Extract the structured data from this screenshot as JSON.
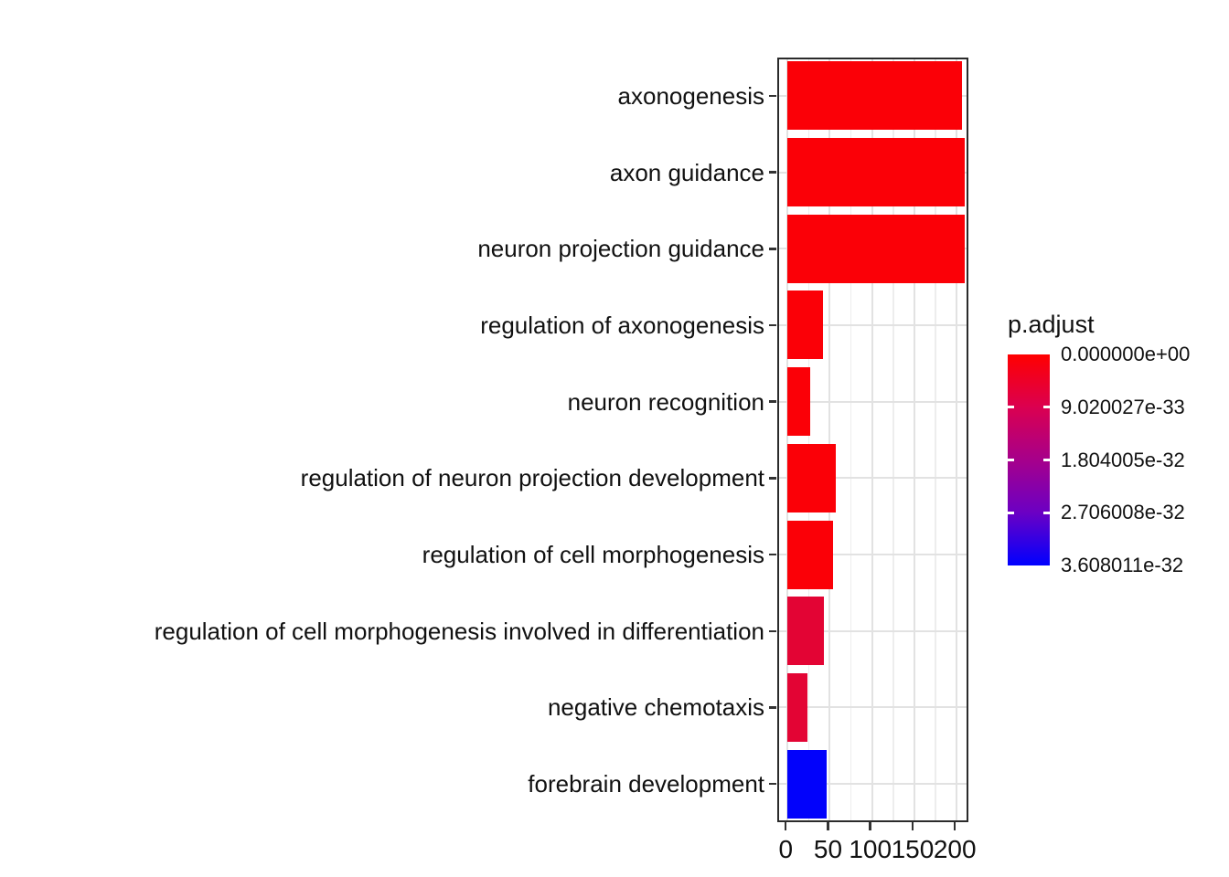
{
  "chart_data": {
    "type": "bar",
    "orientation": "horizontal",
    "title": "",
    "xlabel": "",
    "ylabel": "",
    "grid": true,
    "legend_position": "right",
    "categories": [
      "axonogenesis",
      "axon guidance",
      "neuron projection guidance",
      "regulation of axonogenesis",
      "neuron recognition",
      "regulation of neuron projection development",
      "regulation of cell morphogenesis",
      "regulation of cell morphogenesis involved in differentiation",
      "negative chemotaxis",
      "forebrain development"
    ],
    "values": [
      206,
      210,
      210,
      42,
      27,
      57,
      54,
      43,
      24,
      46
    ],
    "bar_colors": [
      "#FB0007",
      "#FB0007",
      "#FB0007",
      "#FB0007",
      "#FB0007",
      "#FB0007",
      "#FB0007",
      "#E30434",
      "#E30434",
      "#0202FB"
    ],
    "x_axis": {
      "tick_values": [
        0,
        50,
        100,
        150,
        200
      ],
      "tick_labels": [
        "0",
        "50",
        "100",
        "150",
        "200"
      ],
      "minor_tick_values": [
        25,
        75,
        125,
        175
      ],
      "range_min": -10,
      "range_max": 216
    },
    "legend": {
      "title": "p.adjust",
      "tick_labels": [
        "0.000000e+00",
        "9.020027e-33",
        "1.804005e-32",
        "2.706008e-32",
        "3.608011e-32"
      ],
      "gradient_stops": [
        "#FF0000",
        "#DB0050",
        "#A6008B",
        "#6B00C4",
        "#0000FF"
      ]
    }
  }
}
